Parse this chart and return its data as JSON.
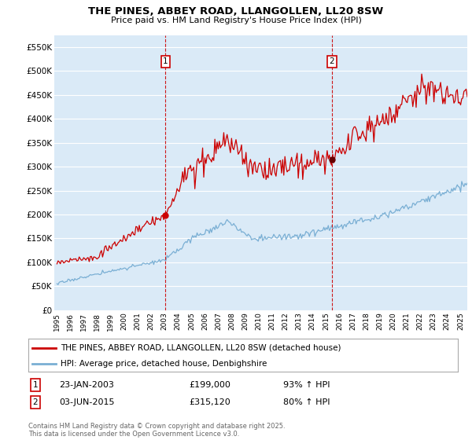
{
  "title": "THE PINES, ABBEY ROAD, LLANGOLLEN, LL20 8SW",
  "subtitle": "Price paid vs. HM Land Registry's House Price Index (HPI)",
  "ylabel_ticks": [
    "£0",
    "£50K",
    "£100K",
    "£150K",
    "£200K",
    "£250K",
    "£300K",
    "£350K",
    "£400K",
    "£450K",
    "£500K",
    "£550K"
  ],
  "ytick_values": [
    0,
    50000,
    100000,
    150000,
    200000,
    250000,
    300000,
    350000,
    400000,
    450000,
    500000,
    550000
  ],
  "ylim": [
    0,
    575000
  ],
  "xlim_start": 1994.8,
  "xlim_end": 2025.5,
  "background_color": "#ffffff",
  "plot_bg_color": "#daeaf7",
  "grid_color": "#ffffff",
  "red_line_color": "#cc0000",
  "blue_line_color": "#7aafd4",
  "marker1_date": 2003.07,
  "marker2_date": 2015.42,
  "marker1_price": 199000,
  "marker2_price": 315120,
  "marker_vline_color": "#cc0000",
  "legend_label1": "THE PINES, ABBEY ROAD, LLANGOLLEN, LL20 8SW (detached house)",
  "legend_label2": "HPI: Average price, detached house, Denbighshire",
  "annotation1_label": "1",
  "annotation2_label": "2",
  "annotation1_date_str": "23-JAN-2003",
  "annotation1_price_str": "£199,000",
  "annotation1_hpi_str": "93% ↑ HPI",
  "annotation2_date_str": "03-JUN-2015",
  "annotation2_price_str": "£315,120",
  "annotation2_hpi_str": "80% ↑ HPI",
  "footer_text": "Contains HM Land Registry data © Crown copyright and database right 2025.\nThis data is licensed under the Open Government Licence v3.0.",
  "xtick_years": [
    1995,
    1996,
    1997,
    1998,
    1999,
    2000,
    2001,
    2002,
    2003,
    2004,
    2005,
    2006,
    2007,
    2008,
    2009,
    2010,
    2011,
    2012,
    2013,
    2014,
    2015,
    2016,
    2017,
    2018,
    2019,
    2020,
    2021,
    2022,
    2023,
    2024,
    2025
  ]
}
